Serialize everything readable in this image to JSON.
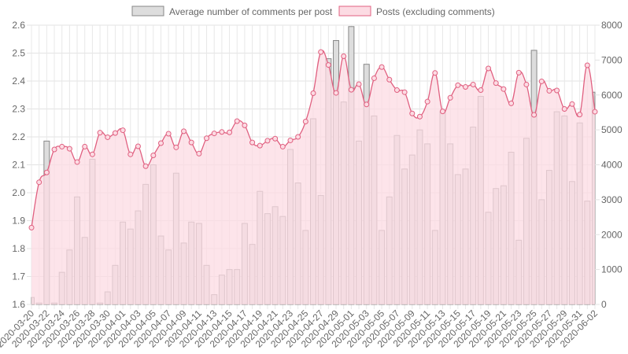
{
  "chart_data": {
    "type": "bar",
    "legend_position": "top",
    "grid": true,
    "x": [
      "2020-03-20",
      "2020-03-21",
      "2020-03-22",
      "2020-03-23",
      "2020-03-24",
      "2020-03-25",
      "2020-03-26",
      "2020-03-27",
      "2020-03-28",
      "2020-03-29",
      "2020-03-30",
      "2020-03-31",
      "2020-04-01",
      "2020-04-02",
      "2020-04-03",
      "2020-04-04",
      "2020-04-05",
      "2020-04-06",
      "2020-04-07",
      "2020-04-08",
      "2020-04-09",
      "2020-04-10",
      "2020-04-11",
      "2020-04-12",
      "2020-04-13",
      "2020-04-14",
      "2020-04-15",
      "2020-04-16",
      "2020-04-17",
      "2020-04-18",
      "2020-04-19",
      "2020-04-20",
      "2020-04-21",
      "2020-04-22",
      "2020-04-23",
      "2020-04-24",
      "2020-04-25",
      "2020-04-26",
      "2020-04-27",
      "2020-04-28",
      "2020-04-29",
      "2020-04-30",
      "2020-05-01",
      "2020-05-02",
      "2020-05-03",
      "2020-05-04",
      "2020-05-05",
      "2020-05-06",
      "2020-05-07",
      "2020-05-08",
      "2020-05-09",
      "2020-05-10",
      "2020-05-11",
      "2020-05-12",
      "2020-05-13",
      "2020-05-14",
      "2020-05-15",
      "2020-05-16",
      "2020-05-17",
      "2020-05-18",
      "2020-05-19",
      "2020-05-20",
      "2020-05-21",
      "2020-05-22",
      "2020-05-23",
      "2020-05-24",
      "2020-05-25",
      "2020-05-26",
      "2020-05-27",
      "2020-05-28",
      "2020-05-29",
      "2020-05-30",
      "2020-05-31",
      "2020-06-01",
      "2020-06-02"
    ],
    "x_tick_labels": [
      "2020-03-20",
      "2020-03-22",
      "2020-03-24",
      "2020-03-26",
      "2020-03-28",
      "2020-03-30",
      "2020-04-01",
      "2020-04-03",
      "2020-04-05",
      "2020-04-07",
      "2020-04-09",
      "2020-04-11",
      "2020-04-13",
      "2020-04-15",
      "2020-04-17",
      "2020-04-19",
      "2020-04-21",
      "2020-04-23",
      "2020-04-25",
      "2020-04-27",
      "2020-04-29",
      "2020-05-01",
      "2020-05-03",
      "2020-05-05",
      "2020-05-07",
      "2020-05-09",
      "2020-05-11",
      "2020-05-13",
      "2020-05-15",
      "2020-05-17",
      "2020-05-19",
      "2020-05-21",
      "2020-05-23",
      "2020-05-25",
      "2020-05-27",
      "2020-05-29",
      "2020-05-31",
      "2020-06-02"
    ],
    "y_left": {
      "ylim": [
        1.6,
        2.6
      ],
      "ticks": [
        "2.6",
        "2.5",
        "2.4",
        "2.3",
        "2.2",
        "2.1",
        "2.0",
        "1.9",
        "1.8",
        "1.7",
        "1.6"
      ]
    },
    "y_right": {
      "ylim": [
        0,
        8000
      ],
      "ticks": [
        "8000",
        "7000",
        "6000",
        "5000",
        "4000",
        "3000",
        "2000",
        "1000",
        "0"
      ]
    },
    "series": [
      {
        "name": "Average number of comments per post",
        "type": "bar",
        "axis": "left",
        "color": "#dddddd",
        "border": "#888888",
        "values": [
          1.625,
          1.605,
          2.185,
          1.605,
          1.715,
          1.795,
          1.985,
          1.84,
          2.12,
          1.605,
          1.645,
          1.74,
          1.895,
          1.87,
          1.935,
          2.03,
          2.1,
          1.845,
          1.795,
          2.07,
          1.82,
          1.895,
          1.89,
          1.74,
          1.635,
          1.705,
          1.725,
          1.725,
          1.89,
          1.815,
          2.005,
          1.925,
          1.95,
          1.915,
          2.155,
          2.035,
          1.865,
          2.265,
          1.99,
          2.48,
          2.545,
          2.325,
          2.595,
          2.185,
          2.46,
          2.275,
          1.865,
          1.985,
          2.205,
          2.085,
          2.135,
          2.225,
          2.175,
          1.865,
          2.29,
          2.175,
          2.065,
          2.085,
          2.235,
          2.345,
          1.93,
          2.015,
          2.025,
          2.145,
          1.83,
          2.195,
          2.51,
          1.975,
          2.08,
          2.29,
          2.275,
          2.04,
          2.25,
          1.97,
          2.36
        ]
      },
      {
        "name": "Posts (excluding comments)",
        "type": "area",
        "axis": "right",
        "color": "#e06080",
        "fill": "#fcdbe3",
        "values": [
          2200,
          3500,
          3780,
          4440,
          4520,
          4460,
          4080,
          4520,
          4300,
          4920,
          4790,
          4910,
          4990,
          4300,
          4530,
          3960,
          4270,
          4620,
          4890,
          4500,
          4960,
          4640,
          4320,
          4760,
          4900,
          4940,
          4930,
          5250,
          5130,
          4640,
          4550,
          4690,
          4750,
          4520,
          4700,
          4800,
          5240,
          6050,
          7230,
          6860,
          6060,
          7110,
          6150,
          6310,
          5730,
          6480,
          6800,
          6440,
          6140,
          6080,
          5470,
          5380,
          5810,
          6630,
          5530,
          5920,
          6280,
          6230,
          6300,
          6140,
          6760,
          6340,
          6170,
          5760,
          6640,
          6300,
          5430,
          6390,
          6120,
          6130,
          5600,
          5740,
          5440,
          6850,
          5520
        ]
      }
    ]
  }
}
